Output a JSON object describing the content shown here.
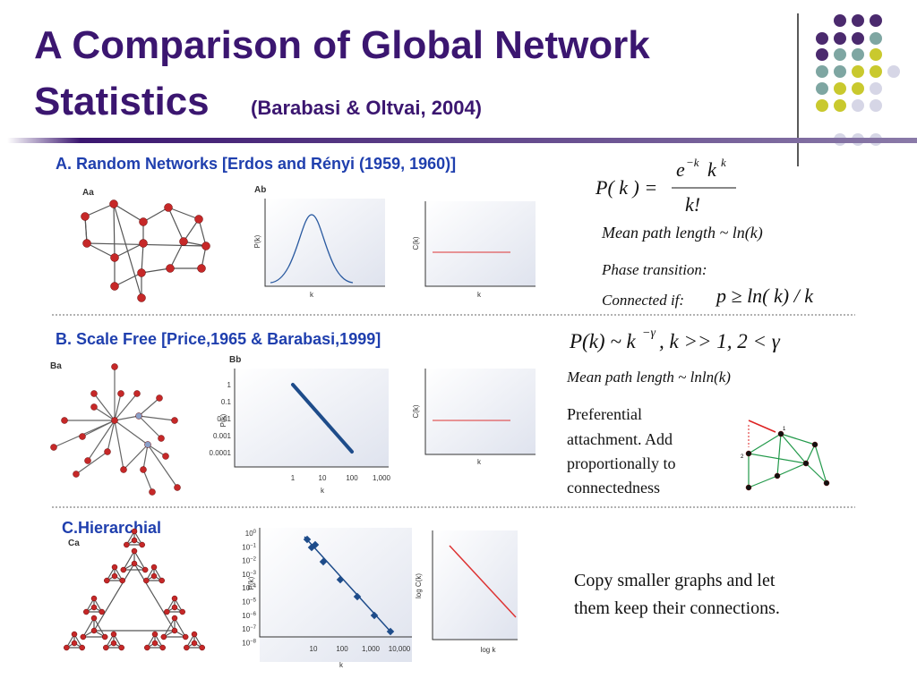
{
  "header": {
    "title_line1": "A Comparison of Global Network",
    "title_line2": "Statistics",
    "citation": "(Barabasi & Oltvai, 2004)"
  },
  "section_a": {
    "heading": "A. Random Networks   [Erdos and Rényi (1959, 1960)]",
    "panel_labels": [
      "Aa",
      "Ab"
    ],
    "degree_plot": {
      "y_label": "P(k)",
      "x_label": "k"
    },
    "clustering_plot": {
      "y_label": "C(k)",
      "x_label": "k"
    },
    "formula": {
      "lhs": "P( k ) =",
      "base": "e",
      "exponent": "−k",
      "power_base": "k",
      "power": "k",
      "denominator": "k!"
    },
    "path_length": "Mean path length ~ ln(k)",
    "phase_transition": "Phase transition:",
    "connected_if": "Connected if:",
    "connected_formula": "p ≥ ln( k) / k"
  },
  "section_b": {
    "heading": "B. Scale Free [Price,1965 & Barabasi,1999]",
    "panel_labels": [
      "Ba",
      "Bb"
    ],
    "degree_plot": {
      "y_label": "P(k)",
      "x_label": "k",
      "yticks": [
        "1",
        "0.1",
        "0.01",
        "0.001",
        "0.0001"
      ],
      "xticks": [
        "1",
        "10",
        "100",
        "1,000"
      ]
    },
    "clustering_plot": {
      "y_label": "C(k)",
      "x_label": "k"
    },
    "formula": {
      "lhs": "P(k) ~ k",
      "exponent": "−γ",
      "rest": ", k >> 1,  2 < γ"
    },
    "path_length": "Mean path length ~ lnln(k)",
    "description": [
      "Preferential",
      "attachment. Add",
      "proportionally to",
      "connectedness"
    ],
    "node_labels": [
      "1",
      "2"
    ]
  },
  "section_c": {
    "heading": "C.Hierarchial",
    "panel_labels": [
      "Ca"
    ],
    "degree_plot": {
      "y_label": "P(k)",
      "x_label": "k",
      "ytick_base": "10",
      "ytick_exponents": [
        "0",
        "−1",
        "−2",
        "−3",
        "−4",
        "−5",
        "−6",
        "−7",
        "−8"
      ],
      "xticks": [
        "10",
        "100",
        "1,000",
        "10,000"
      ]
    },
    "clustering_plot": {
      "y_label": "log C(k)",
      "x_label": "log k"
    },
    "description": [
      "Copy smaller graphs and let",
      "them keep their connections."
    ]
  }
}
